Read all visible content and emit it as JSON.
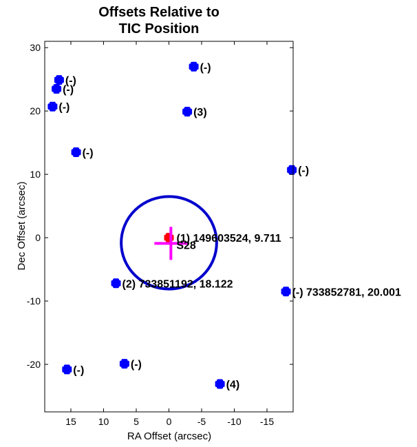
{
  "chart_data": {
    "type": "scatter",
    "title": [
      "Offsets Relative to",
      "TIC Position"
    ],
    "xlabel": "RA Offset (arcsec)",
    "ylabel": "Dec Offset (arcsec)",
    "xlim": [
      19,
      -19
    ],
    "ylim": [
      -27.5,
      31
    ],
    "x_reversed": true,
    "xticks": [
      15,
      10,
      5,
      0,
      -5,
      -10,
      -15
    ],
    "yticks": [
      30,
      20,
      10,
      0,
      -10,
      -20
    ],
    "grid": false,
    "colors": {
      "stars": "#0000ff",
      "target": "#ff0000",
      "circle": "#0000cc",
      "centroid": "#ff00ff"
    },
    "aperture_circle": {
      "x": 0,
      "y": -0.8,
      "radius": 7.3
    },
    "centroid": {
      "x": -0.3,
      "y": -0.9,
      "label": "S28"
    },
    "target": {
      "x": 0,
      "y": 0,
      "label": "(1) 149603524, 9.711"
    },
    "stars": [
      {
        "x": 16.8,
        "y": 24.9,
        "label": "(-)"
      },
      {
        "x": 17.2,
        "y": 23.5,
        "label": "(-)"
      },
      {
        "x": 17.8,
        "y": 20.7,
        "label": "(-)"
      },
      {
        "x": 14.2,
        "y": 13.5,
        "label": "(-)"
      },
      {
        "x": -3.8,
        "y": 27.0,
        "label": "(-)"
      },
      {
        "x": -2.8,
        "y": 19.9,
        "label": "(3)"
      },
      {
        "x": -18.8,
        "y": 10.7,
        "label": "(-)"
      },
      {
        "x": 8.1,
        "y": -7.2,
        "label": "(2) 733851192, 18.122"
      },
      {
        "x": -17.9,
        "y": -8.5,
        "label": "(-) 733852781, 20.001"
      },
      {
        "x": 15.6,
        "y": -20.8,
        "label": "(-)"
      },
      {
        "x": 6.8,
        "y": -19.9,
        "label": "(-)"
      },
      {
        "x": -7.8,
        "y": -23.1,
        "label": "(4)"
      }
    ]
  }
}
